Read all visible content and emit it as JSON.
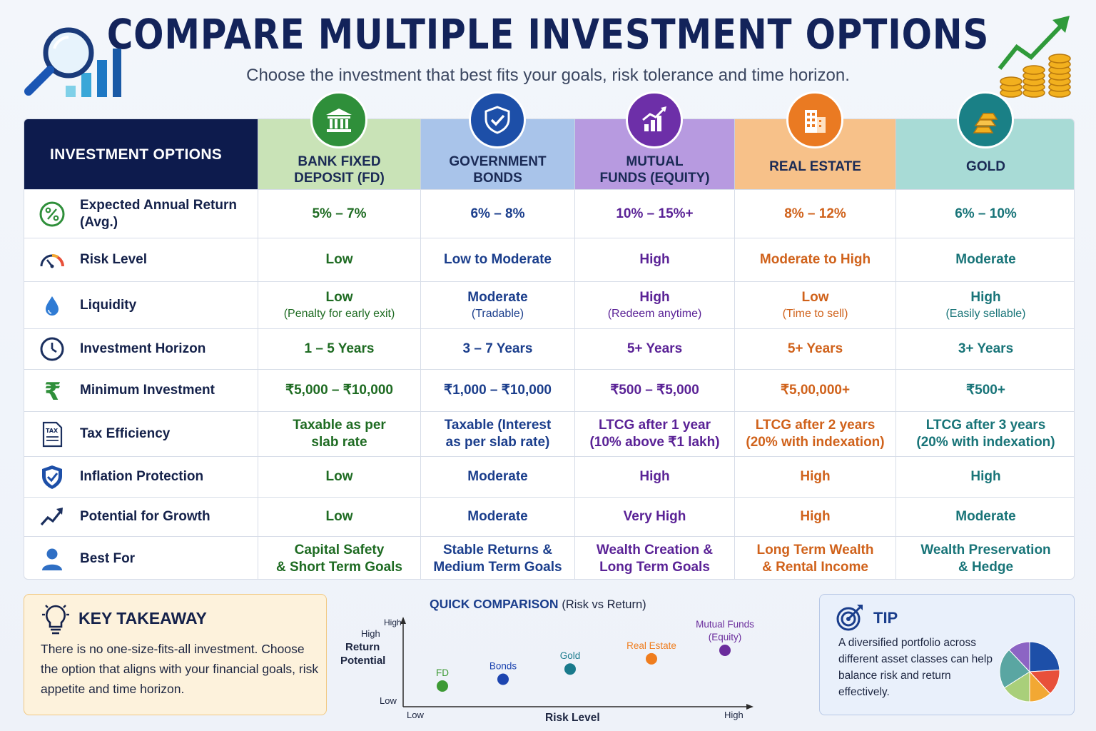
{
  "header": {
    "title": "COMPARE MULTIPLE INVESTMENT OPTIONS",
    "subtitle": "Choose the investment that best fits your goals, risk tolerance and time horizon."
  },
  "table": {
    "label_header": "INVESTMENT OPTIONS",
    "columns": [
      {
        "label": "BANK FIXED\nDEPOSIT (FD)",
        "icon": "bank-icon",
        "color": "#2f8f3a",
        "bg": "#c9e3b7"
      },
      {
        "label": "GOVERNMENT\nBONDS",
        "icon": "shield-icon",
        "color": "#1d4fa8",
        "bg": "#a9c4ea"
      },
      {
        "label": "MUTUAL\nFUNDS (EQUITY)",
        "icon": "growth-chart-icon",
        "color": "#6d2fa8",
        "bg": "#b79ae0"
      },
      {
        "label": "REAL ESTATE",
        "icon": "building-icon",
        "color": "#ea7a22",
        "bg": "#f7c189"
      },
      {
        "label": "GOLD",
        "icon": "gold-bars-icon",
        "color": "#1a8086",
        "bg": "#a8dbd6"
      }
    ],
    "rows": [
      {
        "label": "Expected Annual Return\n(Avg.)",
        "icon": "percent-icon",
        "cells": [
          {
            "v": "5% – 7%"
          },
          {
            "v": "6% – 8%"
          },
          {
            "v": "10% – 15%+"
          },
          {
            "v": "8% – 12%"
          },
          {
            "v": "6% – 10%"
          }
        ]
      },
      {
        "label": "Risk Level",
        "icon": "gauge-icon",
        "cells": [
          {
            "v": "Low"
          },
          {
            "v": "Low to Moderate"
          },
          {
            "v": "High"
          },
          {
            "v": "Moderate to High"
          },
          {
            "v": "Moderate"
          }
        ]
      },
      {
        "label": "Liquidity",
        "icon": "water-drop-icon",
        "cells": [
          {
            "v": "Low",
            "s": "(Penalty for early exit)"
          },
          {
            "v": "Moderate",
            "s": "(Tradable)"
          },
          {
            "v": "High",
            "s": "(Redeem anytime)"
          },
          {
            "v": "Low",
            "s": "(Time to sell)"
          },
          {
            "v": "High",
            "s": "(Easily sellable)"
          }
        ]
      },
      {
        "label": "Investment Horizon",
        "icon": "clock-icon",
        "cells": [
          {
            "v": "1 – 5 Years"
          },
          {
            "v": "3 – 7 Years"
          },
          {
            "v": "5+ Years"
          },
          {
            "v": "5+ Years"
          },
          {
            "v": "3+ Years"
          }
        ]
      },
      {
        "label": "Minimum Investment",
        "icon": "rupee-icon",
        "cells": [
          {
            "v": "₹5,000 – ₹10,000"
          },
          {
            "v": "₹1,000 – ₹10,000"
          },
          {
            "v": "₹500 – ₹5,000"
          },
          {
            "v": "₹5,00,000+"
          },
          {
            "v": "₹500+"
          }
        ]
      },
      {
        "label": "Tax Efficiency",
        "icon": "tax-document-icon",
        "cells": [
          {
            "v": "Taxable as per\nslab rate"
          },
          {
            "v": "Taxable (Interest\nas per slab rate)"
          },
          {
            "v": "LTCG after 1 year\n(10% above ₹1 lakh)"
          },
          {
            "v": "LTCG after 2 years\n(20% with indexation)"
          },
          {
            "v": "LTCG after 3 years\n(20% with indexation)"
          }
        ]
      },
      {
        "label": "Inflation Protection",
        "icon": "shield-check-icon",
        "cells": [
          {
            "v": "Low"
          },
          {
            "v": "Moderate"
          },
          {
            "v": "High"
          },
          {
            "v": "High"
          },
          {
            "v": "High"
          }
        ]
      },
      {
        "label": "Potential for Growth",
        "icon": "trend-up-icon",
        "cells": [
          {
            "v": "Low"
          },
          {
            "v": "Moderate"
          },
          {
            "v": "Very High"
          },
          {
            "v": "High"
          },
          {
            "v": "Moderate"
          }
        ]
      },
      {
        "label": "Best For",
        "icon": "person-icon",
        "cells": [
          {
            "v": "Capital Safety\n& Short Term Goals"
          },
          {
            "v": "Stable Returns &\nMedium Term Goals"
          },
          {
            "v": "Wealth Creation &\nLong Term Goals"
          },
          {
            "v": "Long Term Wealth\n& Rental Income"
          },
          {
            "v": "Wealth Preservation\n& Hedge"
          }
        ]
      }
    ]
  },
  "takeaway": {
    "title": "KEY TAKEAWAY",
    "icon": "lightbulb-icon",
    "body": "There is no one-size-fits-all investment. Choose the option that aligns with your financial goals, risk appetite and time horizon."
  },
  "quick_comparison": {
    "title": "QUICK COMPARISON",
    "title_suffix": "(Risk vs Return)",
    "y_top_tick": "High",
    "y_label_top": "High",
    "y_label_1": "Return",
    "y_label_2": "Potential",
    "y_low": "Low",
    "x_low": "Low",
    "x_label": "Risk Level",
    "x_high": "High"
  },
  "chart_data": {
    "type": "scatter",
    "title": "QUICK COMPARISON (Risk vs Return)",
    "xlabel": "Risk Level",
    "ylabel": "Return Potential",
    "x_ticks": [
      "Low",
      "High"
    ],
    "y_ticks": [
      "Low",
      "High"
    ],
    "points": [
      {
        "label": "FD",
        "risk": 1,
        "return": 1,
        "color": "#3d9a35"
      },
      {
        "label": "Bonds",
        "risk": 2,
        "return": 1.4,
        "color": "#1d45b0"
      },
      {
        "label": "Gold",
        "risk": 3,
        "return": 2,
        "color": "#197a8c"
      },
      {
        "label": "Real Estate",
        "risk": 4.1,
        "return": 2.6,
        "color": "#ef7d1e"
      },
      {
        "label": "Mutual Funds\n(Equity)",
        "risk": 5,
        "return": 3.1,
        "color": "#6a2c9c"
      }
    ]
  },
  "tip": {
    "title": "TIP",
    "icon": "target-icon",
    "body": "A diversified portfolio across different asset classes can help balance risk and return effectively.",
    "pie_colors": [
      "#1d4fa8",
      "#e8503a",
      "#f2a833",
      "#a9cf7a",
      "#5aa6a2",
      "#8c64c4"
    ]
  }
}
